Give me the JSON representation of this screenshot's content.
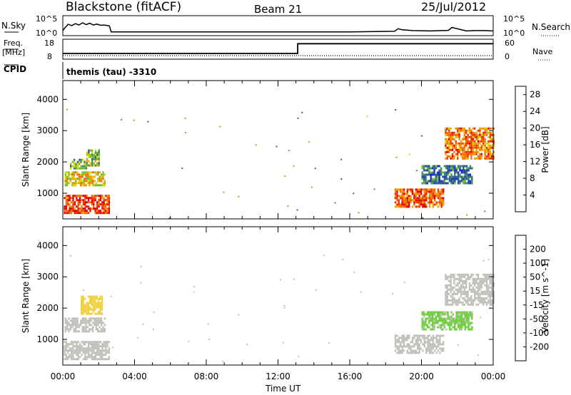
{
  "header": {
    "station": "Blackstone (fitACF)",
    "beam": "Beam 21",
    "date": "25/Jul/2012"
  },
  "noise_panel": {
    "left_label": "N.Sky",
    "right_label": "N.Search",
    "left_ticks": [
      "10^5",
      "10^0"
    ],
    "right_ticks": [
      "10^5",
      "10^0"
    ]
  },
  "freq_panel": {
    "left_label_line1": "Freq.",
    "left_label_line2": "[MHz]",
    "right_label": "Nave",
    "left_ticks": [
      "18",
      "8"
    ],
    "right_ticks": [
      "60",
      "0"
    ]
  },
  "cpid_panel": {
    "label": "CPID",
    "program": "themis (tau) -3310"
  },
  "x_axis": {
    "label": "Time UT",
    "ticks": [
      "00:00",
      "04:00",
      "08:00",
      "12:00",
      "16:00",
      "20:00",
      "00:00"
    ]
  },
  "colors": {
    "power_scale": [
      "#1f1fe0",
      "#1f3fa8",
      "#2f5f8f",
      "#3f8f5f",
      "#6fbf2f",
      "#e0d000",
      "#f0a000",
      "#f07000",
      "#f03000",
      "#e00000"
    ],
    "velocity_scale": [
      "#e00000",
      "#f06010",
      "#f0a000",
      "#f0d040",
      "#c0c0b8",
      "#6fcf3f",
      "#3f9f3f",
      "#2f6f8f",
      "#1f3fd0"
    ],
    "ground_scatter": "#c0c0b8"
  },
  "chart_data": [
    {
      "type": "line",
      "title": "N.Sky / N.Search",
      "xlabel": "",
      "ylabel": "N.Sky",
      "y_scale": "log",
      "ylim": [
        1,
        100000
      ],
      "x_unit": "hours UT",
      "series": [
        {
          "name": "N.Sky",
          "x": [
            0,
            0.1,
            0.3,
            0.5,
            0.7,
            0.9,
            1.1,
            1.3,
            1.5,
            1.7,
            1.9,
            2.1,
            2.3,
            2.5,
            2.6,
            2.7,
            4,
            8,
            12,
            16,
            18.5,
            18.7,
            18.9,
            19.5,
            20.5,
            21.5,
            21.7,
            22.5,
            23,
            23.5,
            24
          ],
          "y": [
            5,
            30,
            500,
            200,
            800,
            300,
            1500,
            400,
            1200,
            300,
            600,
            250,
            300,
            200,
            150,
            2,
            2,
            2,
            2,
            2,
            3,
            20,
            10,
            5,
            4,
            6,
            50,
            4,
            5,
            5,
            4
          ]
        }
      ]
    },
    {
      "type": "line",
      "title": "Freq / Nave",
      "xlabel": "",
      "ylabel": "Freq. [MHz]",
      "ylim": [
        8,
        18
      ],
      "x_unit": "hours UT",
      "series": [
        {
          "name": "Freq.",
          "x": [
            0,
            13.1,
            13.1,
            24
          ],
          "y": [
            10.5,
            10.5,
            16.2,
            16.2
          ]
        },
        {
          "name": "Nave",
          "x": [
            0,
            24
          ],
          "y": [
            8,
            8
          ]
        }
      ]
    },
    {
      "type": "heatmap",
      "title": "",
      "xlabel": "Time UT",
      "ylabel": "Slant Range [km]",
      "xlim": [
        0,
        24
      ],
      "ylim": [
        180,
        4600
      ],
      "x_ticks": [
        "00:00",
        "04:00",
        "08:00",
        "12:00",
        "16:00",
        "20:00",
        "00:00"
      ],
      "y_ticks": [
        1000,
        2000,
        3000,
        4000
      ],
      "colorbar": {
        "label": "Power [dB]",
        "ticks": [
          4,
          8,
          12,
          16,
          20,
          24,
          28
        ],
        "range": [
          0,
          30
        ]
      },
      "regions": [
        {
          "t0": 0.05,
          "t1": 2.6,
          "r0": 350,
          "r1": 950,
          "value": 26
        },
        {
          "t0": 0.1,
          "t1": 2.3,
          "r0": 1250,
          "r1": 1700,
          "value": 18
        },
        {
          "t0": 0.4,
          "t1": 1.3,
          "r0": 1800,
          "r1": 2100,
          "value": 12
        },
        {
          "t0": 1.3,
          "t1": 2.0,
          "r0": 1900,
          "r1": 2400,
          "value": 14
        },
        {
          "t0": 18.5,
          "t1": 21.2,
          "r0": 550,
          "r1": 1150,
          "value": 24
        },
        {
          "t0": 21.3,
          "t1": 24,
          "r0": 2100,
          "r1": 3100,
          "value": 22
        },
        {
          "t0": 20.0,
          "t1": 22.8,
          "r0": 1300,
          "r1": 1900,
          "value": 8
        }
      ]
    },
    {
      "type": "heatmap",
      "title": "",
      "xlabel": "Time UT",
      "ylabel": "Slant Range [km]",
      "xlim": [
        0,
        24
      ],
      "ylim": [
        180,
        4600
      ],
      "x_ticks": [
        "00:00",
        "04:00",
        "08:00",
        "12:00",
        "16:00",
        "20:00",
        "00:00"
      ],
      "y_ticks": [
        1000,
        2000,
        3000,
        4000
      ],
      "colorbar": {
        "label": "Velocity [m s^-1]",
        "ticks": [
          200,
          100,
          50,
          15,
          -15,
          -50,
          -100,
          -200
        ],
        "range": [
          -250,
          250
        ]
      },
      "regions": [
        {
          "t0": 0.05,
          "t1": 2.6,
          "r0": 350,
          "r1": 950,
          "value": 0
        },
        {
          "t0": 0.1,
          "t1": 2.3,
          "r0": 1250,
          "r1": 1700,
          "value": 0
        },
        {
          "t0": 1.0,
          "t1": 2.2,
          "r0": 1800,
          "r1": 2400,
          "value": -50
        },
        {
          "t0": 18.5,
          "t1": 21.2,
          "r0": 550,
          "r1": 1150,
          "value": 0
        },
        {
          "t0": 21.3,
          "t1": 24,
          "r0": 2100,
          "r1": 3100,
          "value": 0
        },
        {
          "t0": 20.0,
          "t1": 22.8,
          "r0": 1300,
          "r1": 1900,
          "value": 40
        }
      ]
    }
  ]
}
